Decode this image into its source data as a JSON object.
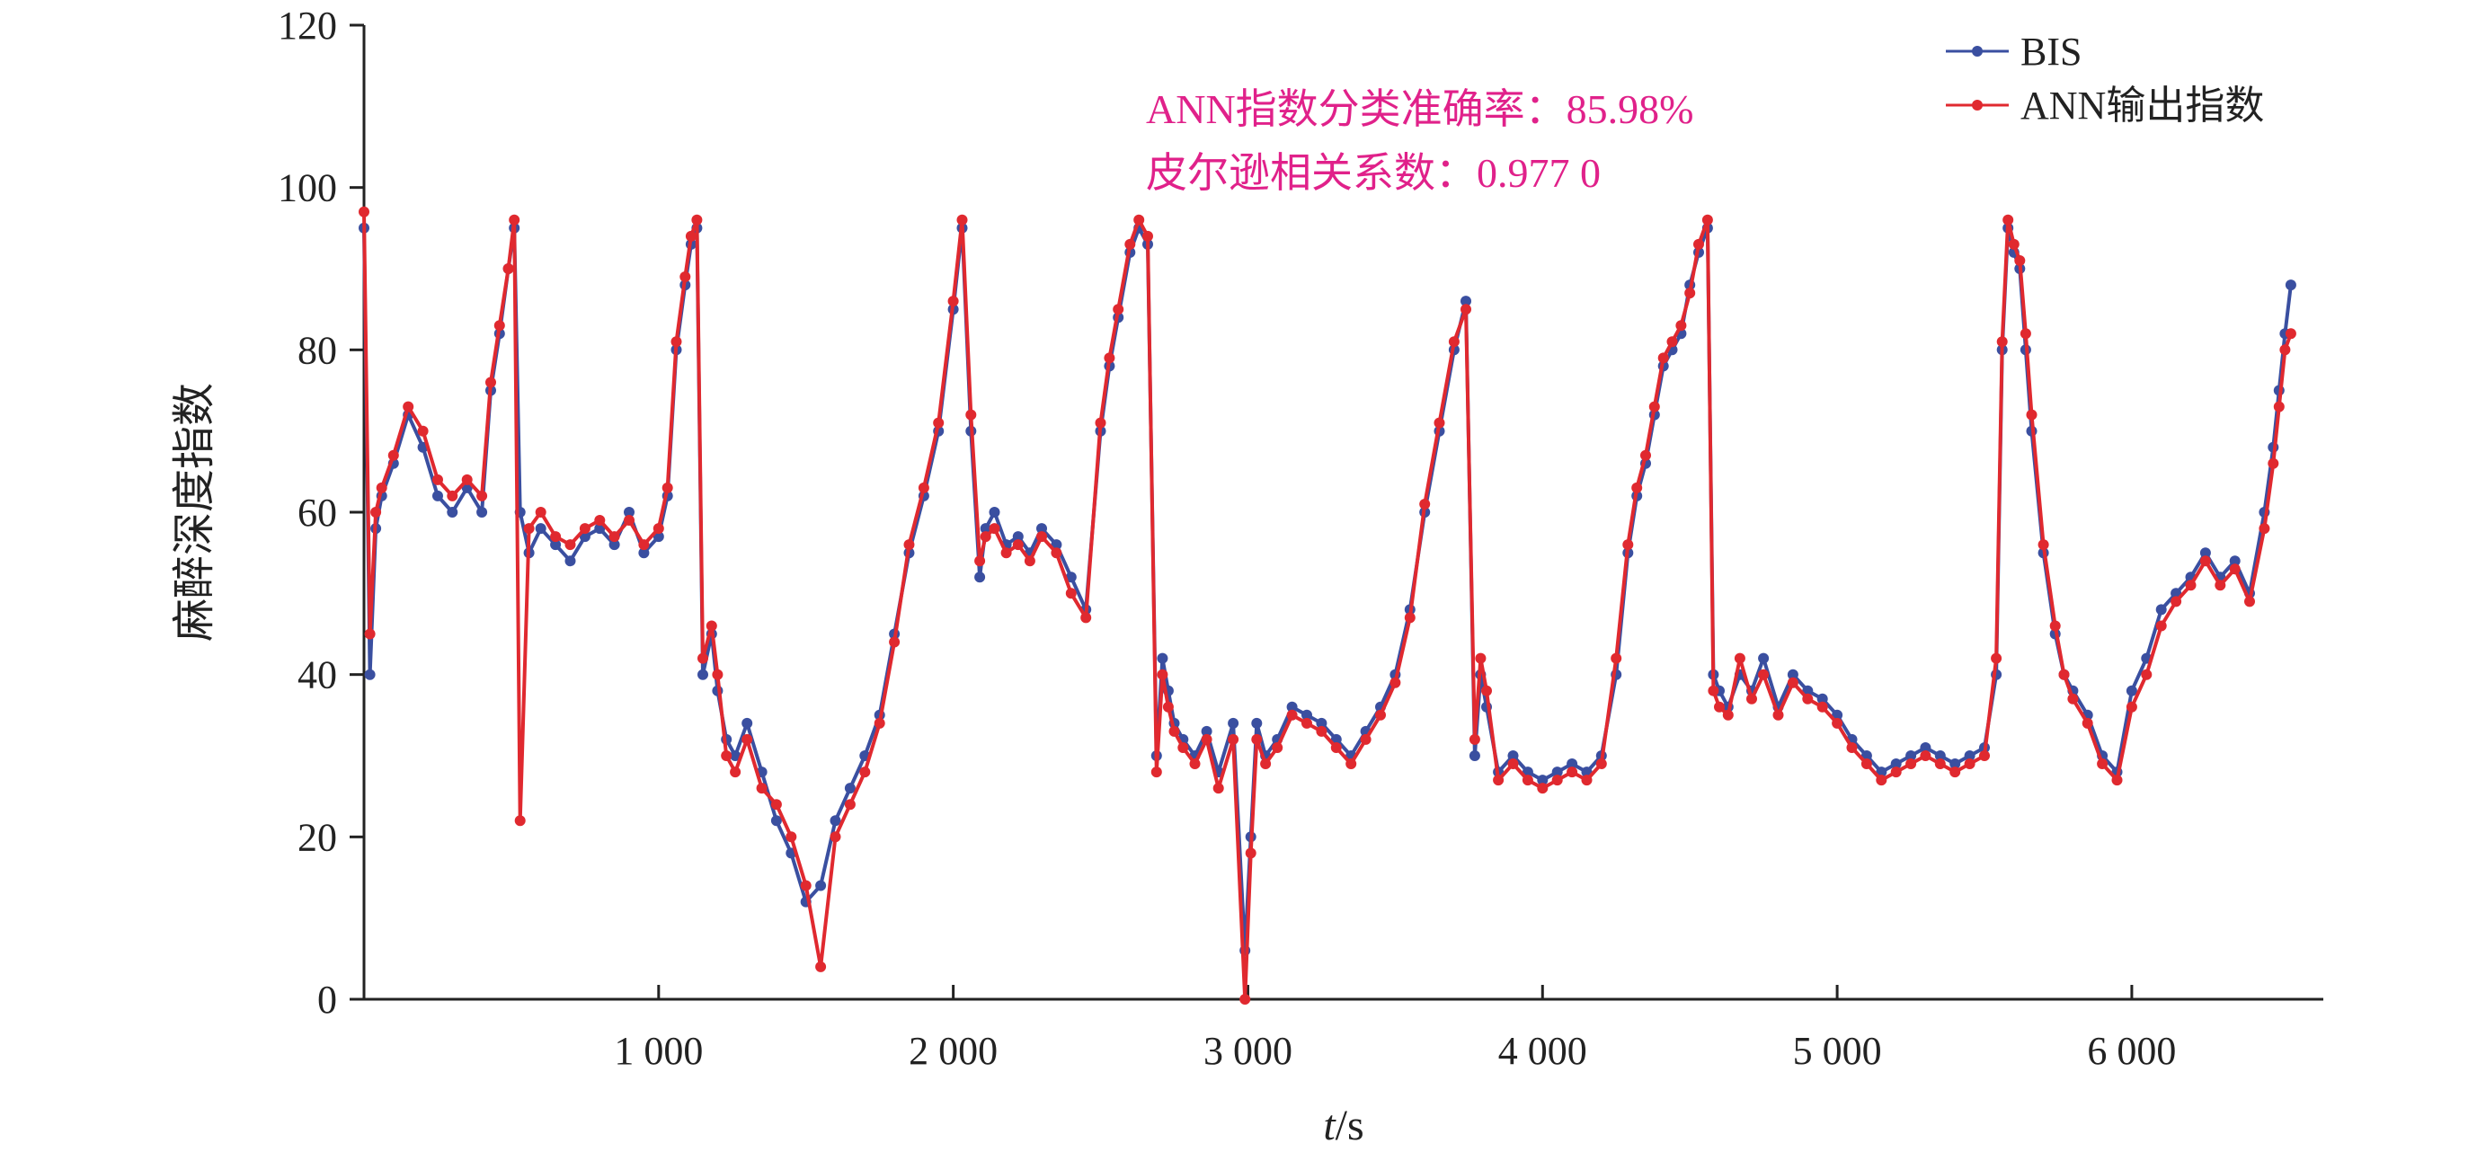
{
  "chart_data": {
    "type": "line",
    "title": "",
    "xlabel": "t/s",
    "ylabel": "麻醉深度指数",
    "xlim": [
      0,
      6650
    ],
    "ylim": [
      0,
      120
    ],
    "x_ticks": [
      1000,
      2000,
      3000,
      4000,
      5000,
      6000
    ],
    "x_tick_labels": [
      "1 000",
      "2 000",
      "3 000",
      "4 000",
      "5 000",
      "6 000"
    ],
    "y_ticks": [
      0,
      20,
      40,
      60,
      80,
      100,
      120
    ],
    "y_tick_labels": [
      "0",
      "20",
      "40",
      "60",
      "80",
      "100",
      "120"
    ],
    "grid": false,
    "legend_position": "top-right",
    "annotations": [
      "ANN指数分类准确率：85.98%",
      "皮尔逊相关系数：0.977 0"
    ],
    "colors": {
      "bis": "#3a4fa0",
      "ann": "#e0292f",
      "annotation": "#e0218a"
    },
    "series": [
      {
        "name": "BIS",
        "x": [
          0,
          20,
          40,
          60,
          100,
          150,
          200,
          250,
          300,
          350,
          400,
          430,
          460,
          490,
          510,
          530,
          560,
          600,
          650,
          700,
          750,
          800,
          850,
          900,
          950,
          1000,
          1030,
          1060,
          1090,
          1110,
          1130,
          1150,
          1180,
          1200,
          1230,
          1260,
          1300,
          1350,
          1400,
          1450,
          1500,
          1550,
          1600,
          1650,
          1700,
          1750,
          1800,
          1850,
          1900,
          1950,
          2000,
          2030,
          2060,
          2090,
          2110,
          2140,
          2180,
          2220,
          2260,
          2300,
          2350,
          2400,
          2450,
          2500,
          2530,
          2560,
          2600,
          2630,
          2660,
          2690,
          2710,
          2730,
          2750,
          2780,
          2820,
          2860,
          2900,
          2950,
          2990,
          3010,
          3030,
          3060,
          3100,
          3150,
          3200,
          3250,
          3300,
          3350,
          3400,
          3450,
          3500,
          3550,
          3600,
          3650,
          3700,
          3740,
          3770,
          3790,
          3810,
          3850,
          3900,
          3950,
          4000,
          4050,
          4100,
          4150,
          4200,
          4250,
          4290,
          4320,
          4350,
          4380,
          4410,
          4440,
          4470,
          4500,
          4530,
          4560,
          4580,
          4600,
          4630,
          4670,
          4710,
          4750,
          4800,
          4850,
          4900,
          4950,
          5000,
          5050,
          5100,
          5150,
          5200,
          5250,
          5300,
          5350,
          5400,
          5450,
          5500,
          5540,
          5560,
          5580,
          5600,
          5620,
          5640,
          5660,
          5700,
          5740,
          5770,
          5800,
          5850,
          5900,
          5950,
          6000,
          6050,
          6100,
          6150,
          6200,
          6250,
          6300,
          6350,
          6400,
          6450,
          6480,
          6500,
          6520,
          6540
        ],
        "y": [
          95,
          40,
          58,
          62,
          66,
          72,
          68,
          62,
          60,
          63,
          60,
          75,
          82,
          90,
          95,
          60,
          55,
          58,
          56,
          54,
          57,
          58,
          56,
          60,
          55,
          57,
          62,
          80,
          88,
          93,
          95,
          40,
          45,
          38,
          32,
          30,
          34,
          28,
          22,
          18,
          12,
          14,
          22,
          26,
          30,
          35,
          45,
          55,
          62,
          70,
          85,
          95,
          70,
          52,
          58,
          60,
          56,
          57,
          55,
          58,
          56,
          52,
          48,
          70,
          78,
          84,
          92,
          95,
          93,
          30,
          42,
          38,
          34,
          32,
          30,
          33,
          28,
          34,
          6,
          20,
          34,
          30,
          32,
          36,
          35,
          34,
          32,
          30,
          33,
          36,
          40,
          48,
          60,
          70,
          80,
          86,
          30,
          40,
          36,
          28,
          30,
          28,
          27,
          28,
          29,
          28,
          30,
          40,
          55,
          62,
          66,
          72,
          78,
          80,
          82,
          88,
          92,
          95,
          40,
          38,
          36,
          40,
          38,
          42,
          36,
          40,
          38,
          37,
          35,
          32,
          30,
          28,
          29,
          30,
          31,
          30,
          29,
          30,
          31,
          40,
          80,
          95,
          92,
          90,
          80,
          70,
          55,
          45,
          40,
          38,
          35,
          30,
          28,
          38,
          42,
          48,
          50,
          52,
          55,
          52,
          54,
          50,
          60,
          68,
          75,
          82,
          88
        ]
      },
      {
        "name": "ANN输出指数",
        "x": [
          0,
          20,
          40,
          60,
          100,
          150,
          200,
          250,
          300,
          350,
          400,
          430,
          460,
          490,
          510,
          530,
          560,
          600,
          650,
          700,
          750,
          800,
          850,
          900,
          950,
          1000,
          1030,
          1060,
          1090,
          1110,
          1130,
          1150,
          1180,
          1200,
          1230,
          1260,
          1300,
          1350,
          1400,
          1450,
          1500,
          1550,
          1600,
          1650,
          1700,
          1750,
          1800,
          1850,
          1900,
          1950,
          2000,
          2030,
          2060,
          2090,
          2110,
          2140,
          2180,
          2220,
          2260,
          2300,
          2350,
          2400,
          2450,
          2500,
          2530,
          2560,
          2600,
          2630,
          2660,
          2690,
          2710,
          2730,
          2750,
          2780,
          2820,
          2860,
          2900,
          2950,
          2990,
          3010,
          3030,
          3060,
          3100,
          3150,
          3200,
          3250,
          3300,
          3350,
          3400,
          3450,
          3500,
          3550,
          3600,
          3650,
          3700,
          3740,
          3770,
          3790,
          3810,
          3850,
          3900,
          3950,
          4000,
          4050,
          4100,
          4150,
          4200,
          4250,
          4290,
          4320,
          4350,
          4380,
          4410,
          4440,
          4470,
          4500,
          4530,
          4560,
          4580,
          4600,
          4630,
          4670,
          4710,
          4750,
          4800,
          4850,
          4900,
          4950,
          5000,
          5050,
          5100,
          5150,
          5200,
          5250,
          5300,
          5350,
          5400,
          5450,
          5500,
          5540,
          5560,
          5580,
          5600,
          5620,
          5640,
          5660,
          5700,
          5740,
          5770,
          5800,
          5850,
          5900,
          5950,
          6000,
          6050,
          6100,
          6150,
          6200,
          6250,
          6300,
          6350,
          6400,
          6450,
          6480,
          6500,
          6520,
          6540
        ],
        "y": [
          97,
          45,
          60,
          63,
          67,
          73,
          70,
          64,
          62,
          64,
          62,
          76,
          83,
          90,
          96,
          22,
          58,
          60,
          57,
          56,
          58,
          59,
          57,
          59,
          56,
          58,
          63,
          81,
          89,
          94,
          96,
          42,
          46,
          40,
          30,
          28,
          32,
          26,
          24,
          20,
          14,
          4,
          20,
          24,
          28,
          34,
          44,
          56,
          63,
          71,
          86,
          96,
          72,
          54,
          57,
          58,
          55,
          56,
          54,
          57,
          55,
          50,
          47,
          71,
          79,
          85,
          93,
          96,
          94,
          28,
          40,
          36,
          33,
          31,
          29,
          32,
          26,
          32,
          0,
          18,
          32,
          29,
          31,
          35,
          34,
          33,
          31,
          29,
          32,
          35,
          39,
          47,
          61,
          71,
          81,
          85,
          32,
          42,
          38,
          27,
          29,
          27,
          26,
          27,
          28,
          27,
          29,
          42,
          56,
          63,
          67,
          73,
          79,
          81,
          83,
          87,
          93,
          96,
          38,
          36,
          35,
          42,
          37,
          40,
          35,
          39,
          37,
          36,
          34,
          31,
          29,
          27,
          28,
          29,
          30,
          29,
          28,
          29,
          30,
          42,
          81,
          96,
          93,
          91,
          82,
          72,
          56,
          46,
          40,
          37,
          34,
          29,
          27,
          36,
          40,
          46,
          49,
          51,
          54,
          51,
          53,
          49,
          58,
          66,
          73,
          80,
          82
        ]
      }
    ]
  }
}
